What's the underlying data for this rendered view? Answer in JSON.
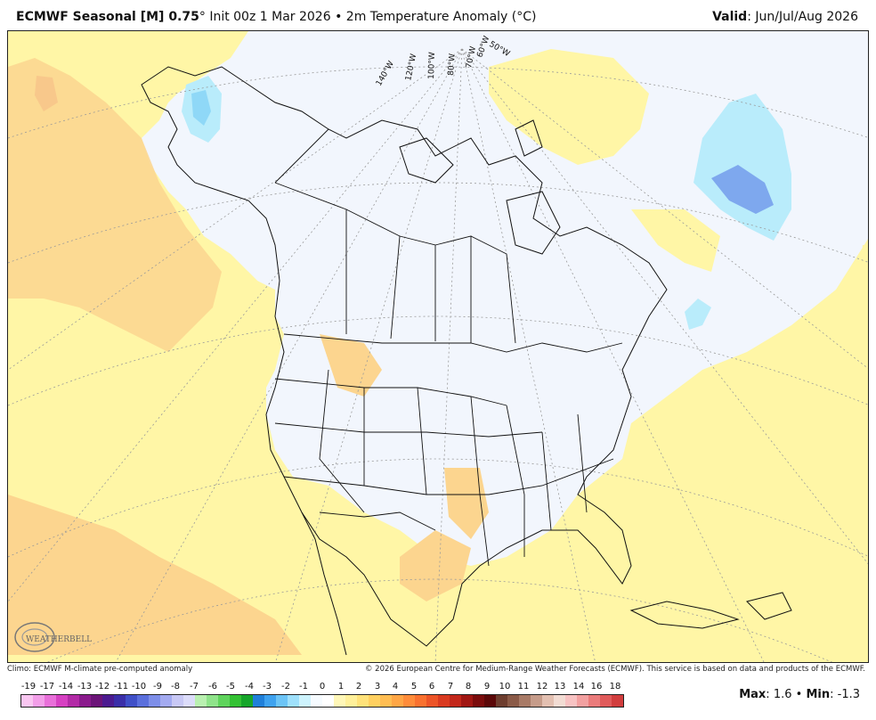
{
  "header": {
    "model": "ECMWF Seasonal [M] 0.75",
    "degree": "°",
    "init": "Init 00z 1 Mar 2026",
    "bullet": "•",
    "field": "2m Temperature Anomaly (°C)",
    "valid_label": "Valid",
    "valid_value": "Jun/Jul/Aug 2026"
  },
  "map": {
    "longitude_labels": [
      "140°W",
      "120°W",
      "100°W",
      "80°W",
      "70°W",
      "60°W",
      "50°W"
    ],
    "logo_text": "WEATHERBELL"
  },
  "footer": {
    "climo": "Climo: ECMWF M-climate pre-computed anomaly",
    "copyright": "© 2026 European Centre for Medium-Range Weather Forecasts (ECMWF). This service is based on data and products of the ECMWF."
  },
  "legend": {
    "labels": [
      "-19",
      "-17",
      "-14",
      "-13",
      "-12",
      "-11",
      "-10",
      "-9",
      "-8",
      "-7",
      "-6",
      "-5",
      "-4",
      "-3",
      "-2",
      "-1",
      "0",
      "1",
      "2",
      "3",
      "4",
      "5",
      "6",
      "7",
      "8",
      "9",
      "10",
      "11",
      "12",
      "13",
      "14",
      "16",
      "18"
    ],
    "colors": [
      "#f9c6f1",
      "#f29ee8",
      "#e86fd9",
      "#d640c2",
      "#b22aa6",
      "#8a1a8c",
      "#6b1478",
      "#4b1a8f",
      "#3a2ea8",
      "#3f4fc7",
      "#5a6fdc",
      "#7d8ee8",
      "#a3aaf0",
      "#c8c8f5",
      "#dcdcfa",
      "#b9f0b0",
      "#8fe38a",
      "#5fd35c",
      "#33c133",
      "#16a52a",
      "#1f7fd9",
      "#3ea2ef",
      "#6cc4f6",
      "#9ee0fb",
      "#cdf3fd",
      "#f6fbff",
      "#ffffff",
      "#fff7b8",
      "#fff09a",
      "#ffe27a",
      "#ffd060",
      "#ffbd52",
      "#ffa645",
      "#ff8c3a",
      "#f9712f",
      "#ec5427",
      "#d93a20",
      "#c2271a",
      "#a01612",
      "#7a0c0c",
      "#5a0808",
      "#6d3d2e",
      "#8a5a47",
      "#a87a66",
      "#c69c8a",
      "#e3c0b1",
      "#f2dcd3",
      "#f7c2c2",
      "#f2a0a0",
      "#ea7b7b",
      "#e05a5a",
      "#d13d3d"
    ],
    "max_label": "Max",
    "max_value": "1.6",
    "min_label": "Min",
    "min_value": "-1.3",
    "sep": "•"
  },
  "colors": {
    "ocean": "#eef3fd",
    "warm_light": "#fff6a6",
    "warm_medium": "#fcd58f",
    "warm_orange": "#f8c88b",
    "cool_light": "#b9ecfb",
    "cool_medium": "#8fd8f7",
    "cool_blue": "#7ea8ee"
  }
}
